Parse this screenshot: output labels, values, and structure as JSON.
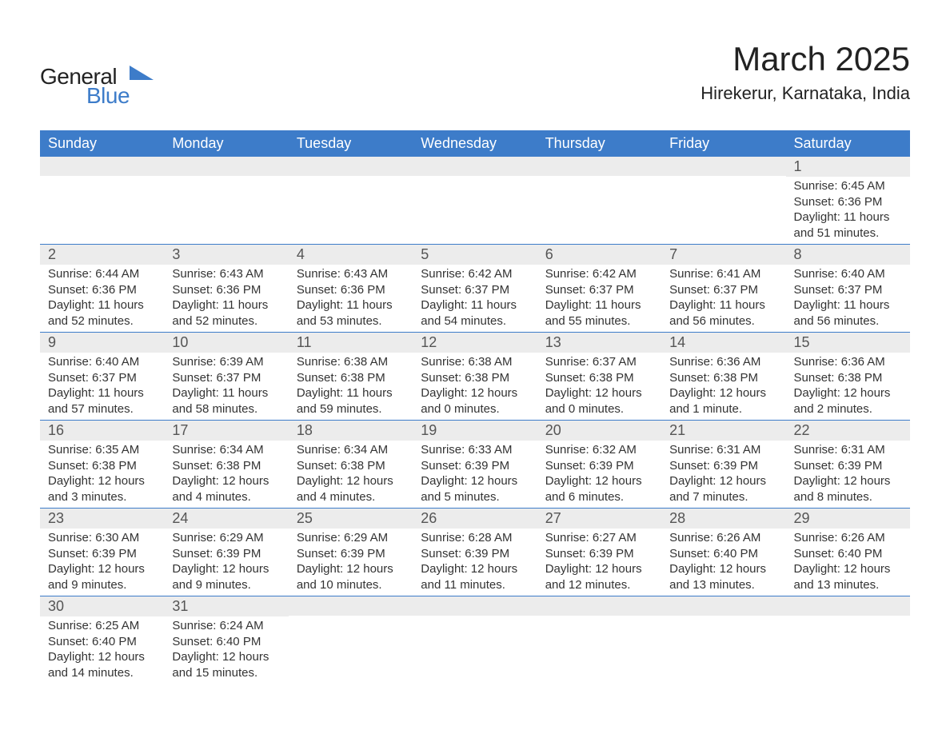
{
  "logo": {
    "text_general": "General",
    "text_blue": "Blue",
    "shape_color": "#3d7cc9"
  },
  "header": {
    "month_title": "March 2025",
    "location": "Hirekerur, Karnataka, India"
  },
  "day_labels": [
    "Sunday",
    "Monday",
    "Tuesday",
    "Wednesday",
    "Thursday",
    "Friday",
    "Saturday"
  ],
  "style": {
    "header_bg": "#3d7cc9",
    "header_text": "#ffffff",
    "daynum_bg": "#ececec",
    "daynum_text": "#555555",
    "body_text": "#333333",
    "row_border": "#3d7cc9",
    "page_bg": "#ffffff",
    "month_title_fontsize": 42,
    "location_fontsize": 22,
    "daylabel_fontsize": 18,
    "daynum_fontsize": 18,
    "cell_fontsize": 15
  },
  "weeks": [
    [
      {
        "day": "",
        "sunrise": "",
        "sunset": "",
        "daylight": ""
      },
      {
        "day": "",
        "sunrise": "",
        "sunset": "",
        "daylight": ""
      },
      {
        "day": "",
        "sunrise": "",
        "sunset": "",
        "daylight": ""
      },
      {
        "day": "",
        "sunrise": "",
        "sunset": "",
        "daylight": ""
      },
      {
        "day": "",
        "sunrise": "",
        "sunset": "",
        "daylight": ""
      },
      {
        "day": "",
        "sunrise": "",
        "sunset": "",
        "daylight": ""
      },
      {
        "day": "1",
        "sunrise": "Sunrise: 6:45 AM",
        "sunset": "Sunset: 6:36 PM",
        "daylight": "Daylight: 11 hours and 51 minutes."
      }
    ],
    [
      {
        "day": "2",
        "sunrise": "Sunrise: 6:44 AM",
        "sunset": "Sunset: 6:36 PM",
        "daylight": "Daylight: 11 hours and 52 minutes."
      },
      {
        "day": "3",
        "sunrise": "Sunrise: 6:43 AM",
        "sunset": "Sunset: 6:36 PM",
        "daylight": "Daylight: 11 hours and 52 minutes."
      },
      {
        "day": "4",
        "sunrise": "Sunrise: 6:43 AM",
        "sunset": "Sunset: 6:36 PM",
        "daylight": "Daylight: 11 hours and 53 minutes."
      },
      {
        "day": "5",
        "sunrise": "Sunrise: 6:42 AM",
        "sunset": "Sunset: 6:37 PM",
        "daylight": "Daylight: 11 hours and 54 minutes."
      },
      {
        "day": "6",
        "sunrise": "Sunrise: 6:42 AM",
        "sunset": "Sunset: 6:37 PM",
        "daylight": "Daylight: 11 hours and 55 minutes."
      },
      {
        "day": "7",
        "sunrise": "Sunrise: 6:41 AM",
        "sunset": "Sunset: 6:37 PM",
        "daylight": "Daylight: 11 hours and 56 minutes."
      },
      {
        "day": "8",
        "sunrise": "Sunrise: 6:40 AM",
        "sunset": "Sunset: 6:37 PM",
        "daylight": "Daylight: 11 hours and 56 minutes."
      }
    ],
    [
      {
        "day": "9",
        "sunrise": "Sunrise: 6:40 AM",
        "sunset": "Sunset: 6:37 PM",
        "daylight": "Daylight: 11 hours and 57 minutes."
      },
      {
        "day": "10",
        "sunrise": "Sunrise: 6:39 AM",
        "sunset": "Sunset: 6:37 PM",
        "daylight": "Daylight: 11 hours and 58 minutes."
      },
      {
        "day": "11",
        "sunrise": "Sunrise: 6:38 AM",
        "sunset": "Sunset: 6:38 PM",
        "daylight": "Daylight: 11 hours and 59 minutes."
      },
      {
        "day": "12",
        "sunrise": "Sunrise: 6:38 AM",
        "sunset": "Sunset: 6:38 PM",
        "daylight": "Daylight: 12 hours and 0 minutes."
      },
      {
        "day": "13",
        "sunrise": "Sunrise: 6:37 AM",
        "sunset": "Sunset: 6:38 PM",
        "daylight": "Daylight: 12 hours and 0 minutes."
      },
      {
        "day": "14",
        "sunrise": "Sunrise: 6:36 AM",
        "sunset": "Sunset: 6:38 PM",
        "daylight": "Daylight: 12 hours and 1 minute."
      },
      {
        "day": "15",
        "sunrise": "Sunrise: 6:36 AM",
        "sunset": "Sunset: 6:38 PM",
        "daylight": "Daylight: 12 hours and 2 minutes."
      }
    ],
    [
      {
        "day": "16",
        "sunrise": "Sunrise: 6:35 AM",
        "sunset": "Sunset: 6:38 PM",
        "daylight": "Daylight: 12 hours and 3 minutes."
      },
      {
        "day": "17",
        "sunrise": "Sunrise: 6:34 AM",
        "sunset": "Sunset: 6:38 PM",
        "daylight": "Daylight: 12 hours and 4 minutes."
      },
      {
        "day": "18",
        "sunrise": "Sunrise: 6:34 AM",
        "sunset": "Sunset: 6:38 PM",
        "daylight": "Daylight: 12 hours and 4 minutes."
      },
      {
        "day": "19",
        "sunrise": "Sunrise: 6:33 AM",
        "sunset": "Sunset: 6:39 PM",
        "daylight": "Daylight: 12 hours and 5 minutes."
      },
      {
        "day": "20",
        "sunrise": "Sunrise: 6:32 AM",
        "sunset": "Sunset: 6:39 PM",
        "daylight": "Daylight: 12 hours and 6 minutes."
      },
      {
        "day": "21",
        "sunrise": "Sunrise: 6:31 AM",
        "sunset": "Sunset: 6:39 PM",
        "daylight": "Daylight: 12 hours and 7 minutes."
      },
      {
        "day": "22",
        "sunrise": "Sunrise: 6:31 AM",
        "sunset": "Sunset: 6:39 PM",
        "daylight": "Daylight: 12 hours and 8 minutes."
      }
    ],
    [
      {
        "day": "23",
        "sunrise": "Sunrise: 6:30 AM",
        "sunset": "Sunset: 6:39 PM",
        "daylight": "Daylight: 12 hours and 9 minutes."
      },
      {
        "day": "24",
        "sunrise": "Sunrise: 6:29 AM",
        "sunset": "Sunset: 6:39 PM",
        "daylight": "Daylight: 12 hours and 9 minutes."
      },
      {
        "day": "25",
        "sunrise": "Sunrise: 6:29 AM",
        "sunset": "Sunset: 6:39 PM",
        "daylight": "Daylight: 12 hours and 10 minutes."
      },
      {
        "day": "26",
        "sunrise": "Sunrise: 6:28 AM",
        "sunset": "Sunset: 6:39 PM",
        "daylight": "Daylight: 12 hours and 11 minutes."
      },
      {
        "day": "27",
        "sunrise": "Sunrise: 6:27 AM",
        "sunset": "Sunset: 6:39 PM",
        "daylight": "Daylight: 12 hours and 12 minutes."
      },
      {
        "day": "28",
        "sunrise": "Sunrise: 6:26 AM",
        "sunset": "Sunset: 6:40 PM",
        "daylight": "Daylight: 12 hours and 13 minutes."
      },
      {
        "day": "29",
        "sunrise": "Sunrise: 6:26 AM",
        "sunset": "Sunset: 6:40 PM",
        "daylight": "Daylight: 12 hours and 13 minutes."
      }
    ],
    [
      {
        "day": "30",
        "sunrise": "Sunrise: 6:25 AM",
        "sunset": "Sunset: 6:40 PM",
        "daylight": "Daylight: 12 hours and 14 minutes."
      },
      {
        "day": "31",
        "sunrise": "Sunrise: 6:24 AM",
        "sunset": "Sunset: 6:40 PM",
        "daylight": "Daylight: 12 hours and 15 minutes."
      },
      {
        "day": "",
        "sunrise": "",
        "sunset": "",
        "daylight": ""
      },
      {
        "day": "",
        "sunrise": "",
        "sunset": "",
        "daylight": ""
      },
      {
        "day": "",
        "sunrise": "",
        "sunset": "",
        "daylight": ""
      },
      {
        "day": "",
        "sunrise": "",
        "sunset": "",
        "daylight": ""
      },
      {
        "day": "",
        "sunrise": "",
        "sunset": "",
        "daylight": ""
      }
    ]
  ]
}
